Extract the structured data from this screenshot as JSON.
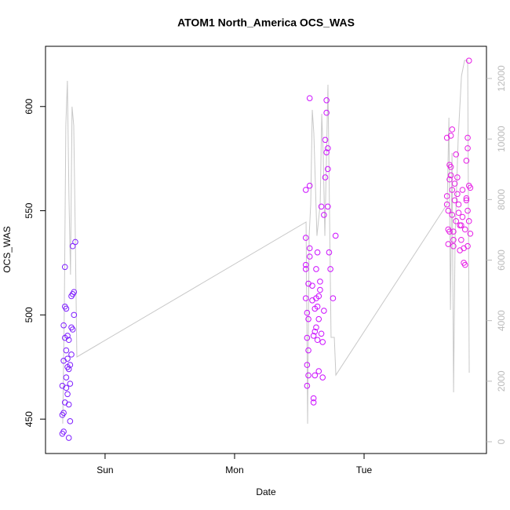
{
  "chart_data": {
    "type": "scatter",
    "title": "ATOM1 North_America OCS_WAS",
    "x_label": "Date",
    "y_label": "OCS_WAS",
    "xlim": [
      -0.46,
      2.945
    ],
    "xticks": [
      {
        "value": 0,
        "label": "Sun"
      },
      {
        "value": 1,
        "label": "Mon"
      },
      {
        "value": 2,
        "label": "Tue"
      }
    ],
    "ylim": [
      433.5,
      628.9
    ],
    "yticks": [
      450,
      500,
      550,
      600
    ],
    "y2lim": [
      -389,
      13063
    ],
    "y2ticks": [
      0,
      2000,
      4000,
      6000,
      8000,
      10000,
      12000
    ],
    "y2_tick_color": "#bbbbbb",
    "series": [
      {
        "type": "scatter",
        "color": "#7f1fff",
        "x": [
          -0.33,
          -0.33,
          -0.33,
          -0.32,
          -0.32,
          -0.32,
          -0.32,
          -0.31,
          -0.31,
          -0.31,
          -0.31,
          -0.3,
          -0.3,
          -0.3,
          -0.3,
          -0.29,
          -0.29,
          -0.29,
          -0.29,
          -0.28,
          -0.28,
          -0.28,
          -0.28,
          -0.27,
          -0.27,
          -0.27,
          -0.26,
          -0.26,
          -0.26,
          -0.25,
          -0.25,
          -0.25,
          -0.24,
          -0.24,
          -0.23
        ],
        "values": [
          443,
          452,
          466,
          444,
          453,
          478,
          495,
          458,
          504,
          523,
          489,
          470,
          483,
          503,
          465,
          475,
          462,
          490,
          479,
          441,
          457,
          488,
          474,
          449,
          467,
          476,
          481,
          494,
          509,
          533,
          493,
          510,
          500,
          511,
          535
        ]
      },
      {
        "type": "scatter",
        "color": "#cc10ff",
        "x": [
          1.55,
          1.55,
          1.55,
          1.55,
          1.55,
          1.56,
          1.56,
          1.56,
          1.56,
          1.57,
          1.57,
          1.57,
          1.57,
          1.58,
          1.58,
          1.58,
          1.58,
          1.6,
          1.6,
          1.61,
          1.61,
          1.61,
          1.62,
          1.62,
          1.62,
          1.63,
          1.63,
          1.63,
          1.64,
          1.64,
          1.64,
          1.65,
          1.65,
          1.65,
          1.66,
          1.66,
          1.67,
          1.67,
          1.68,
          1.68,
          1.69,
          1.69,
          1.7,
          1.7,
          1.71,
          1.71,
          1.71,
          1.72,
          1.72,
          1.72,
          1.73,
          1.74,
          1.76,
          1.78
        ],
        "values": [
          537,
          560,
          524,
          522,
          508,
          501,
          489,
          476,
          466,
          471,
          483,
          498,
          515,
          528,
          532,
          562,
          604,
          507,
          514,
          490,
          460,
          458,
          471,
          492,
          503,
          522,
          508,
          494,
          530,
          488,
          504,
          509,
          498,
          473,
          516,
          512,
          552,
          491,
          487,
          470,
          502,
          548,
          566,
          584,
          603,
          597,
          578,
          580,
          570,
          552,
          530,
          522,
          508,
          538
        ]
      },
      {
        "type": "scatter",
        "color": "#e61ee6",
        "x": [
          2.64,
          2.64,
          2.64,
          2.65,
          2.65,
          2.65,
          2.66,
          2.66,
          2.66,
          2.67,
          2.67,
          2.67,
          2.68,
          2.68,
          2.68,
          2.69,
          2.69,
          2.69,
          2.7,
          2.7,
          2.71,
          2.71,
          2.72,
          2.72,
          2.73,
          2.73,
          2.74,
          2.74,
          2.75,
          2.75,
          2.76,
          2.76,
          2.77,
          2.77,
          2.78,
          2.78,
          2.79,
          2.79,
          2.79,
          2.8,
          2.8,
          2.8,
          2.8,
          2.81,
          2.81,
          2.81,
          2.82,
          2.82
        ],
        "values": [
          585,
          557,
          553,
          550,
          541,
          534,
          540,
          572,
          565,
          571,
          567,
          586,
          589,
          560,
          548,
          536,
          533,
          540,
          555,
          563,
          545,
          577,
          558,
          566,
          549,
          553,
          543,
          531,
          536,
          543,
          547,
          560,
          532,
          525,
          524,
          541,
          555,
          574,
          556,
          533,
          550,
          580,
          585,
          622,
          562,
          545,
          539,
          561
        ]
      },
      {
        "type": "line",
        "axis": "y2",
        "color": "#c8c8c8",
        "x": [
          -0.327,
          -0.315,
          -0.303,
          -0.291,
          -0.279,
          -0.267,
          -0.255,
          -0.242,
          -0.23,
          -0.218,
          1.552,
          1.564,
          1.576,
          1.588,
          1.6,
          1.612,
          1.636,
          1.661,
          1.673,
          1.685,
          1.697,
          1.721,
          1.745,
          1.77,
          1.782,
          2.642,
          2.655,
          2.667,
          2.679,
          2.691,
          2.703,
          2.727,
          2.752,
          2.776,
          2.8,
          2.812
        ],
        "values": [
          600,
          4225,
          10446,
          11923,
          8113,
          5521,
          11068,
          10446,
          6817,
          2800,
          7258,
          596,
          6817,
          7854,
          10964,
          10187,
          6800,
          7850,
          10835,
          9409,
          6800,
          11794,
          3447,
          3447,
          2203,
          7854,
          10705,
          4355,
          9539,
          1633,
          6817,
          10057,
          12079,
          12597,
          12597,
          2281
        ]
      }
    ]
  }
}
